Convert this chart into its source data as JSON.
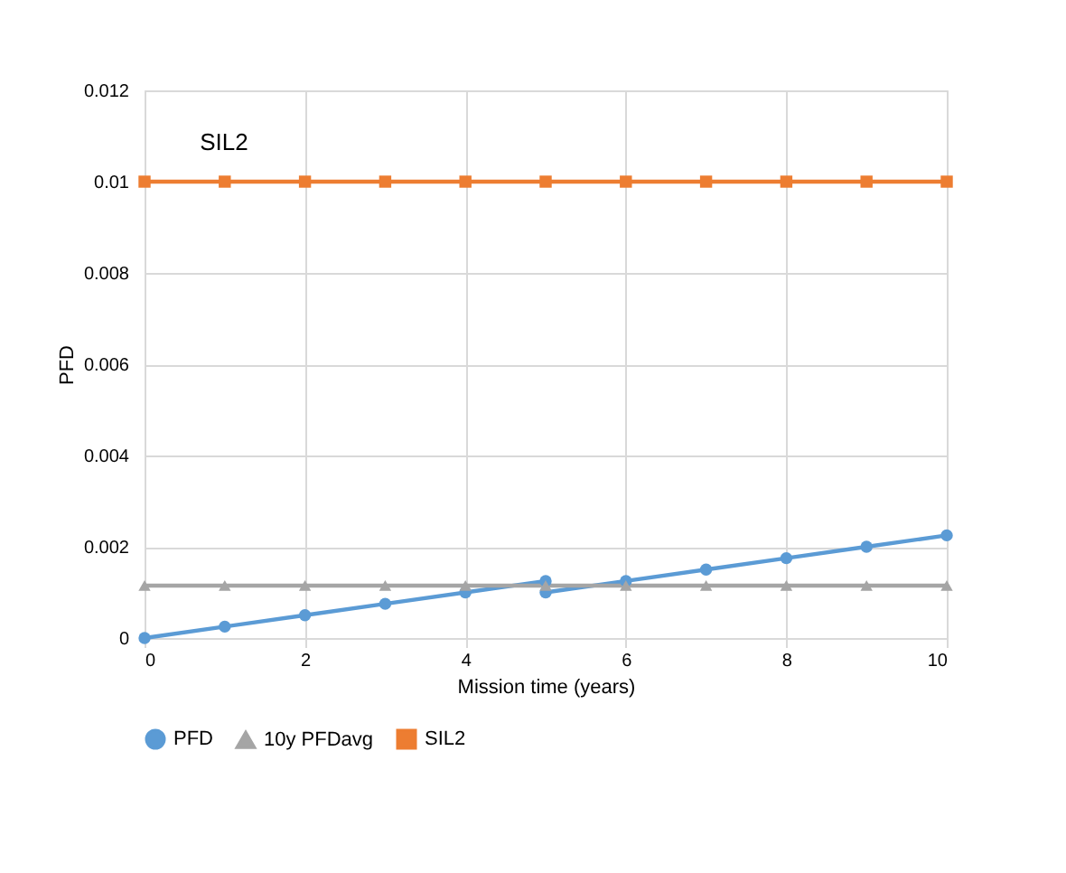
{
  "chart_data": {
    "type": "line",
    "xlabel": "Mission time (years)",
    "ylabel": "PFD",
    "xlim": [
      0,
      10
    ],
    "xticks": [
      0,
      2,
      4,
      6,
      8,
      10
    ],
    "ylim": [
      0,
      0.012
    ],
    "yticks": [
      0,
      0.002,
      0.004,
      0.006,
      0.008,
      0.01,
      0.012
    ],
    "grid": true,
    "legend": "bottom",
    "line_style": "solid",
    "series": [
      {
        "name": "PFD",
        "color": "#5b9bd5",
        "marker": "circle",
        "x": [
          0,
          1,
          2,
          3,
          4,
          5,
          5,
          6,
          7,
          8,
          9,
          10
        ],
        "values": [
          0,
          0.00025,
          0.0005,
          0.00075,
          0.001,
          0.00125,
          0.001,
          0.00125,
          0.0015,
          0.00175,
          0.002,
          0.00225
        ]
      },
      {
        "name": "10y PFDavg",
        "color": "#a5a5a5",
        "marker": "triangle",
        "x": [
          0,
          1,
          2,
          3,
          4,
          5,
          6,
          7,
          8,
          9,
          10
        ],
        "values": [
          0.00115,
          0.00115,
          0.00115,
          0.00115,
          0.00115,
          0.00115,
          0.00115,
          0.00115,
          0.00115,
          0.00115,
          0.00115
        ]
      },
      {
        "name": "SIL2",
        "color": "#ed7d31",
        "marker": "square",
        "x": [
          0,
          1,
          2,
          3,
          4,
          5,
          6,
          7,
          8,
          9,
          10
        ],
        "values": [
          0.01,
          0.01,
          0.01,
          0.01,
          0.01,
          0.01,
          0.01,
          0.01,
          0.01,
          0.01,
          0.01
        ]
      }
    ],
    "annotations": [
      "SIL2"
    ]
  }
}
